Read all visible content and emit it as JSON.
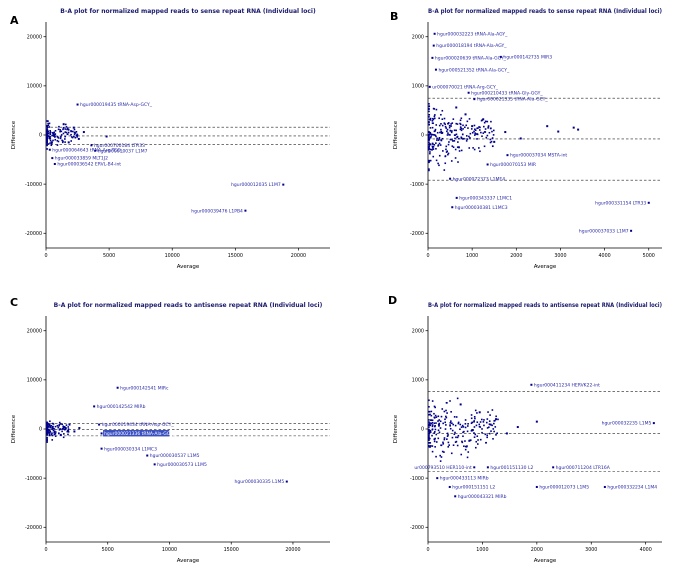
{
  "colors": {
    "point": "#00008b",
    "label_text": "#2828a8",
    "title_text": "#1a1a6e",
    "axis": "#000000",
    "tick_text": "#000000",
    "dashed_line": "#222222",
    "highlight_bg": "#3a50c0",
    "highlight_fg": "#ffffff",
    "background": "#ffffff"
  },
  "chart_data": [
    {
      "panel_label": "A",
      "type": "scatter",
      "title": "B-A plot for normalized mapped reads to sense repeat RNA (Individual loci)",
      "xlabel": "Average",
      "ylabel": "Difference",
      "xlim": [
        0,
        22500
      ],
      "ylim": [
        -23000,
        23000
      ],
      "xticks": [
        0,
        5000,
        10000,
        15000,
        20000
      ],
      "yticks": [
        -20000,
        -10000,
        0,
        10000,
        20000
      ],
      "grid": false,
      "legend": false,
      "dashed_lines": [
        1600,
        -200,
        -1900
      ],
      "cluster": {
        "n": 150,
        "x_max": 2600,
        "y_spread": 1700,
        "x_pow": 2.4
      },
      "extra_points": [
        [
          2200,
          1500
        ],
        [
          3000,
          600
        ],
        [
          2600,
          -800
        ],
        [
          1800,
          -1500
        ],
        [
          4800,
          -300
        ],
        [
          1400,
          2200
        ]
      ],
      "labeled_points": [
        {
          "x": 2500,
          "y": 6200,
          "label": "hgur000019435 tRNA-Asp-GCY_",
          "side": "right"
        },
        {
          "x": 300,
          "y": -3000,
          "label": "hgur000064643 tRNA-Arg-TCG_",
          "side": "right"
        },
        {
          "x": 500,
          "y": -4700,
          "label": "hgur000033859 MLT1J2",
          "side": "right"
        },
        {
          "x": 700,
          "y": -5900,
          "label": "hgur000036542 ERVL-B4-int",
          "side": "right"
        },
        {
          "x": 3600,
          "y": -2100,
          "label": "hgur000700184 LTR33",
          "side": "right"
        },
        {
          "x": 3900,
          "y": -3200,
          "label": "hgur000010037 L1M7",
          "side": "right"
        },
        {
          "x": 18800,
          "y": -10100,
          "label": "hgur000012035 L1M7",
          "side": "left"
        },
        {
          "x": 15800,
          "y": -15400,
          "label": "hgur000039476 L1PB4",
          "side": "left"
        }
      ]
    },
    {
      "panel_label": "B",
      "type": "scatter",
      "title": "B-A plot for normalized mapped reads to sense repeat RNA (Individual loci)",
      "xlabel": "Average",
      "ylabel": "Difference",
      "xlim": [
        0,
        5300
      ],
      "ylim": [
        -2300,
        2300
      ],
      "xticks": [
        0,
        1000,
        2000,
        3000,
        4000,
        5000
      ],
      "yticks": [
        -2000,
        -1000,
        0,
        1000,
        2000
      ],
      "grid": false,
      "legend": false,
      "dashed_lines": [
        750,
        -80,
        -920
      ],
      "cluster": {
        "n": 260,
        "x_max": 1500,
        "y_spread": 430,
        "x_pow": 1.8
      },
      "extra_points": [
        [
          2700,
          180
        ],
        [
          3300,
          150
        ],
        [
          3400,
          110
        ],
        [
          2950,
          70
        ],
        [
          2100,
          -70
        ],
        [
          1500,
          -140
        ],
        [
          1250,
          320
        ],
        [
          850,
          420
        ],
        [
          640,
          560
        ],
        [
          700,
          -250
        ],
        [
          1000,
          180
        ],
        [
          1750,
          60
        ]
      ],
      "labeled_points": [
        {
          "x": 150,
          "y": 2060,
          "label": "hgur000032223 tRNA-Ala-AGY_",
          "side": "right"
        },
        {
          "x": 130,
          "y": 1820,
          "label": "hgur000018194 tRNA-Ala-AGY_",
          "side": "right"
        },
        {
          "x": 100,
          "y": 1570,
          "label": "hgur000020639 tRNA-Ala-GGY_",
          "side": "right"
        },
        {
          "x": 1650,
          "y": 1590,
          "label": "hgur000142735 MIR3",
          "side": "right"
        },
        {
          "x": 180,
          "y": 1330,
          "label": "hgur000521352 tRNA-Ala-GCY_",
          "side": "right"
        },
        {
          "x": 40,
          "y": 980,
          "label": "ur000070021 tRNA-Arg-GCY_",
          "side": "right"
        },
        {
          "x": 920,
          "y": 860,
          "label": "hgur000210433 tRNA-Gly-GGY_",
          "side": "right"
        },
        {
          "x": 1050,
          "y": 730,
          "label": "hgur000021335 tRNA-Ala-GCY_",
          "side": "right"
        },
        {
          "x": 1800,
          "y": -410,
          "label": "hgur000037034 MSTA-int",
          "side": "right"
        },
        {
          "x": 1350,
          "y": -600,
          "label": "hgur000070153 MIR",
          "side": "right"
        },
        {
          "x": 500,
          "y": -890,
          "label": "hgur000072373 L1ME4",
          "side": "right"
        },
        {
          "x": 650,
          "y": -1280,
          "label": "hgur000343337 L1MC1",
          "side": "right"
        },
        {
          "x": 550,
          "y": -1470,
          "label": "hgur000030381 L1MC3",
          "side": "right"
        },
        {
          "x": 5000,
          "y": -1380,
          "label": "hgur000331154 LTR33",
          "side": "left"
        },
        {
          "x": 4600,
          "y": -1950,
          "label": "hgur000037033 L1M7",
          "side": "left"
        }
      ]
    },
    {
      "panel_label": "C",
      "type": "scatter",
      "title": "B-A plot for normalized mapped reads to antisense repeat RNA (Individual loci)",
      "xlabel": "Average",
      "ylabel": "Difference",
      "xlim": [
        0,
        23000
      ],
      "ylim": [
        -23000,
        23000
      ],
      "xticks": [
        0,
        5000,
        10000,
        15000,
        20000
      ],
      "yticks": [
        -20000,
        -10000,
        0,
        10000,
        20000
      ],
      "grid": false,
      "legend": false,
      "dashed_lines": [
        1100,
        -150,
        -1400
      ],
      "cluster": {
        "n": 130,
        "x_max": 1900,
        "y_spread": 1500,
        "x_pow": 2.4
      },
      "extra_points": [
        [
          1500,
          400
        ],
        [
          2300,
          -500
        ],
        [
          1900,
          900
        ],
        [
          1200,
          -1200
        ],
        [
          2700,
          200
        ]
      ],
      "labeled_points": [
        {
          "x": 5800,
          "y": 8400,
          "label": "hgur000142541 MIRc",
          "side": "right"
        },
        {
          "x": 3900,
          "y": 4600,
          "label": "hgur000142542 MIRb",
          "side": "right"
        },
        {
          "x": 4300,
          "y": 900,
          "label": "hgur000019434 tRNA-Asp-GCY_",
          "side": "right"
        },
        {
          "x": 4500,
          "y": -900,
          "label": "hgur000021336 tRNA-Ala-GCY_",
          "side": "right",
          "highlight": true
        },
        {
          "x": 4500,
          "y": -4000,
          "label": "hgur000030334 L1MC3",
          "side": "right"
        },
        {
          "x": 8200,
          "y": -5400,
          "label": "hgur000030537 L1M5",
          "side": "right"
        },
        {
          "x": 8800,
          "y": -7200,
          "label": "hgur000030573 L1M5",
          "side": "right"
        },
        {
          "x": 19500,
          "y": -10700,
          "label": "hgur000030335 L1M5",
          "side": "left"
        }
      ]
    },
    {
      "panel_label": "D",
      "type": "scatter",
      "title": "B-A plot for normalized mapped reads to antisense repeat RNA (Individual loci)",
      "xlabel": "Average",
      "ylabel": "Difference",
      "xlim": [
        0,
        4300
      ],
      "ylim": [
        -2300,
        2300
      ],
      "xticks": [
        0,
        1000,
        2000,
        3000,
        4000
      ],
      "yticks": [
        -2000,
        -1000,
        0,
        1000,
        2000
      ],
      "grid": false,
      "legend": false,
      "dashed_lines": [
        760,
        -90,
        -870
      ],
      "cluster": {
        "n": 240,
        "x_max": 1300,
        "y_spread": 430,
        "x_pow": 1.8
      },
      "extra_points": [
        [
          1250,
          200
        ],
        [
          1450,
          -90
        ],
        [
          950,
          340
        ],
        [
          1150,
          90
        ],
        [
          760,
          -240
        ],
        [
          1650,
          40
        ],
        [
          600,
          500
        ],
        [
          2000,
          150
        ]
      ],
      "labeled_points": [
        {
          "x": 1900,
          "y": 900,
          "label": "hgur000411234 HERVK22-int",
          "side": "right"
        },
        {
          "x": 4150,
          "y": 120,
          "label": "hgur000032235 L1M5",
          "side": "left"
        },
        {
          "x": 850,
          "y": -780,
          "label": "ur000793510 HER110-int",
          "side": "left"
        },
        {
          "x": 1100,
          "y": -780,
          "label": "hgur001151130 L2",
          "side": "right"
        },
        {
          "x": 2300,
          "y": -780,
          "label": "hgur000711204 LTR16A",
          "side": "right"
        },
        {
          "x": 170,
          "y": -1000,
          "label": "hgur000433113 MIRb",
          "side": "right"
        },
        {
          "x": 400,
          "y": -1180,
          "label": "hgur000151151 L2",
          "side": "right"
        },
        {
          "x": 2000,
          "y": -1180,
          "label": "hgur000012073 L1M5",
          "side": "right"
        },
        {
          "x": 3250,
          "y": -1180,
          "label": "hgur000332234 L1M4",
          "side": "right"
        },
        {
          "x": 500,
          "y": -1370,
          "label": "hgur000043321 MIRb",
          "side": "right"
        }
      ]
    }
  ]
}
